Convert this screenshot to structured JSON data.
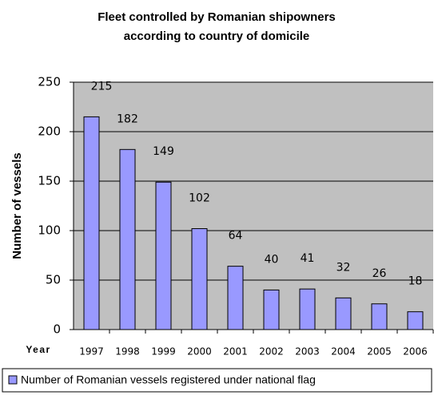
{
  "chart_data": {
    "type": "bar",
    "title": [
      "Fleet controlled by Romanian shipowners",
      "according to country of domicile"
    ],
    "x_label": "Year",
    "y_label": "Number of vessels",
    "categories": [
      "1997",
      "1998",
      "1999",
      "2000",
      "2001",
      "2002",
      "2003",
      "2004",
      "2005",
      "2006"
    ],
    "series": [
      {
        "name": "Number of Romanian vessels registered under national flag",
        "color": "#9999ff",
        "values": [
          215,
          182,
          149,
          102,
          64,
          40,
          41,
          32,
          26,
          18
        ]
      }
    ],
    "ylim": [
      0,
      250
    ],
    "yticks": [
      0,
      50,
      100,
      150,
      200,
      250
    ],
    "grid": true,
    "legend": "bottom"
  }
}
